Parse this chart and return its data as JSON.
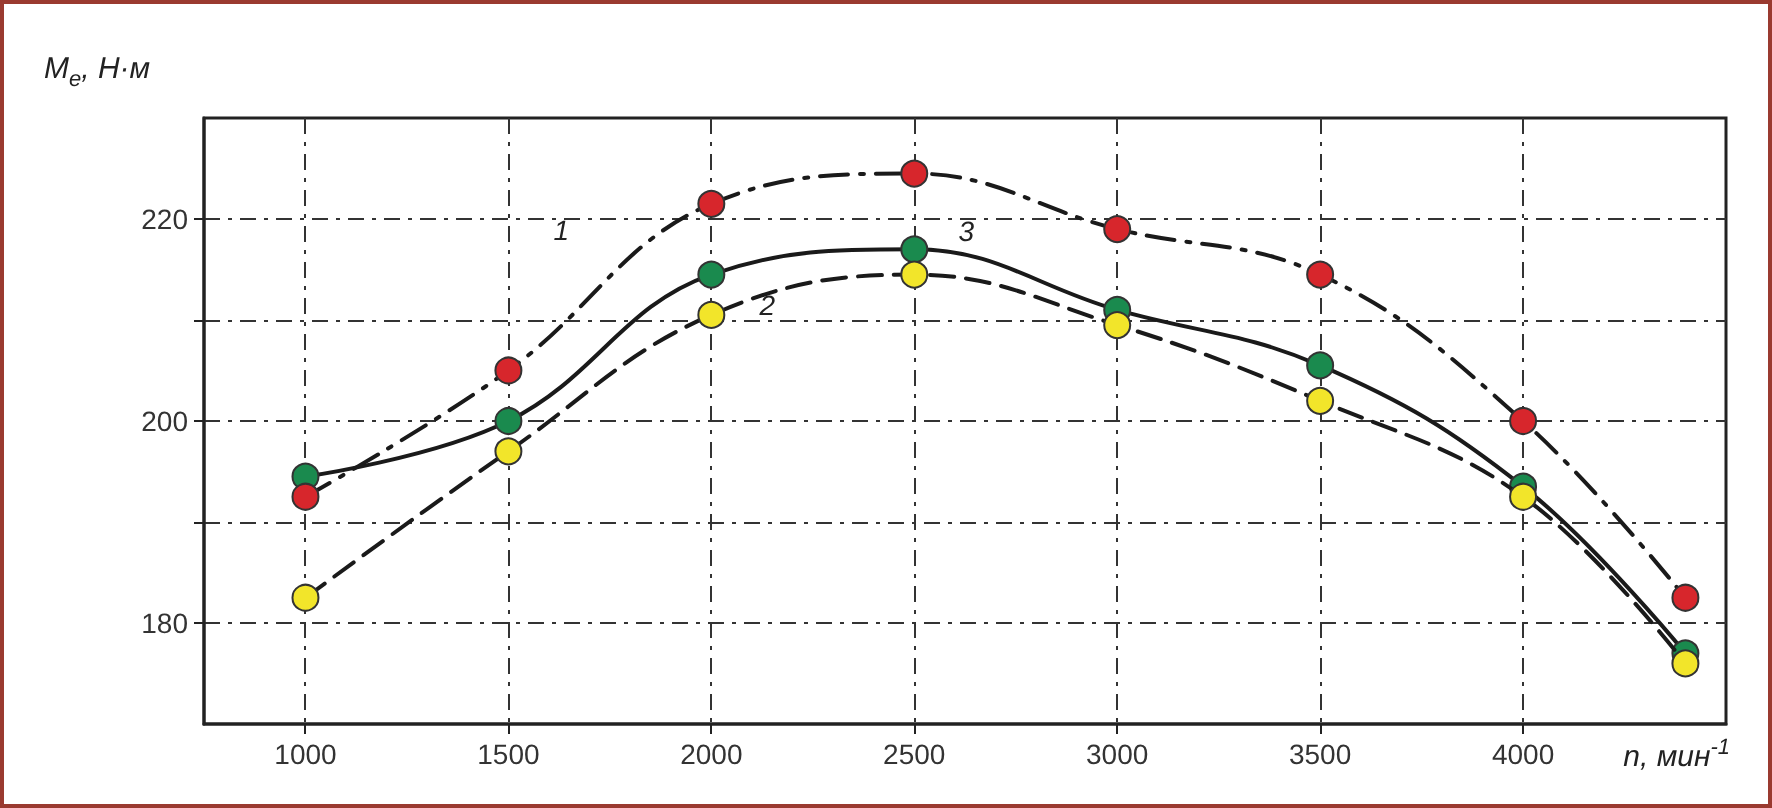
{
  "chart_data": {
    "type": "line",
    "ylabel": "M$_{e}$, Н·м",
    "xlabel": "n, мин$^{-1}$",
    "x": [
      1000,
      1500,
      2000,
      2500,
      3000,
      3500,
      4000,
      4400
    ],
    "series": [
      {
        "name": "1",
        "color": "#d7262c",
        "line_style": "dashdot",
        "values": [
          192.5,
          205,
          221.5,
          224.5,
          219,
          214.5,
          200,
          182.5
        ]
      },
      {
        "name": "2",
        "color": "#f2e52a",
        "line_style": "dashed",
        "values": [
          182.5,
          197,
          210.5,
          214.5,
          209.5,
          202,
          192.5,
          176
        ]
      },
      {
        "name": "3",
        "color": "#1a8a4e",
        "line_style": "solid",
        "values": [
          194.5,
          200,
          214.5,
          217,
          211,
          205.5,
          193.5,
          177
        ]
      }
    ],
    "xlim": [
      750,
      4500
    ],
    "xticks": [
      1000,
      1500,
      2000,
      2500,
      3000,
      3500,
      4000
    ],
    "ylim": [
      170,
      230
    ],
    "yticks": [
      180,
      {
        "value": 190,
        "label": null
      },
      200,
      {
        "value": 210,
        "label": null
      },
      220
    ],
    "grid": true,
    "legend": false,
    "marker": "circle"
  }
}
